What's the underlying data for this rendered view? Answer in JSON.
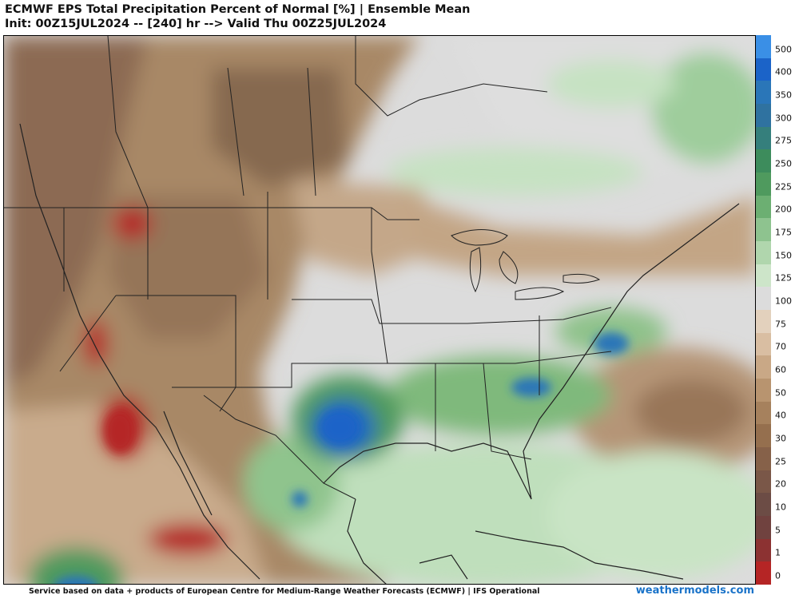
{
  "header": {
    "title_line1": "ECMWF EPS Total Precipitation Percent of Normal [%] | Ensemble Mean",
    "title_line2": "Init: 00Z15JUL2024 -- [240] hr --> Valid Thu 00Z25JUL2024"
  },
  "legend": {
    "levels": [
      {
        "label": "500",
        "color": "#3a8fe6"
      },
      {
        "label": "400",
        "color": "#1b63c8"
      },
      {
        "label": "350",
        "color": "#2a76b8"
      },
      {
        "label": "300",
        "color": "#2f72a0"
      },
      {
        "label": "275",
        "color": "#357f7c"
      },
      {
        "label": "250",
        "color": "#3d8c5c"
      },
      {
        "label": "225",
        "color": "#4f9a5e"
      },
      {
        "label": "200",
        "color": "#6caf72"
      },
      {
        "label": "175",
        "color": "#8ec38f"
      },
      {
        "label": "150",
        "color": "#b0d6ad"
      },
      {
        "label": "125",
        "color": "#cde5c9"
      },
      {
        "label": "100",
        "color": "#dcdcdc"
      },
      {
        "label": "75",
        "color": "#e3d1bd"
      },
      {
        "label": "70",
        "color": "#d9bea2"
      },
      {
        "label": "60",
        "color": "#c9a886"
      },
      {
        "label": "50",
        "color": "#b8946f"
      },
      {
        "label": "40",
        "color": "#a6815d"
      },
      {
        "label": "30",
        "color": "#956f4e"
      },
      {
        "label": "25",
        "color": "#866149"
      },
      {
        "label": "20",
        "color": "#7a5748"
      },
      {
        "label": "10",
        "color": "#6c4c45"
      },
      {
        "label": "5",
        "color": "#70423f"
      },
      {
        "label": "1",
        "color": "#8c3232"
      },
      {
        "label": "0",
        "color": "#b52525"
      }
    ]
  },
  "footer": {
    "attribution": "Service based on data + products of European Centre for Medium-Range Weather Forecasts (ECMWF) | IFS Operational",
    "brand": "weathermodels.com"
  }
}
